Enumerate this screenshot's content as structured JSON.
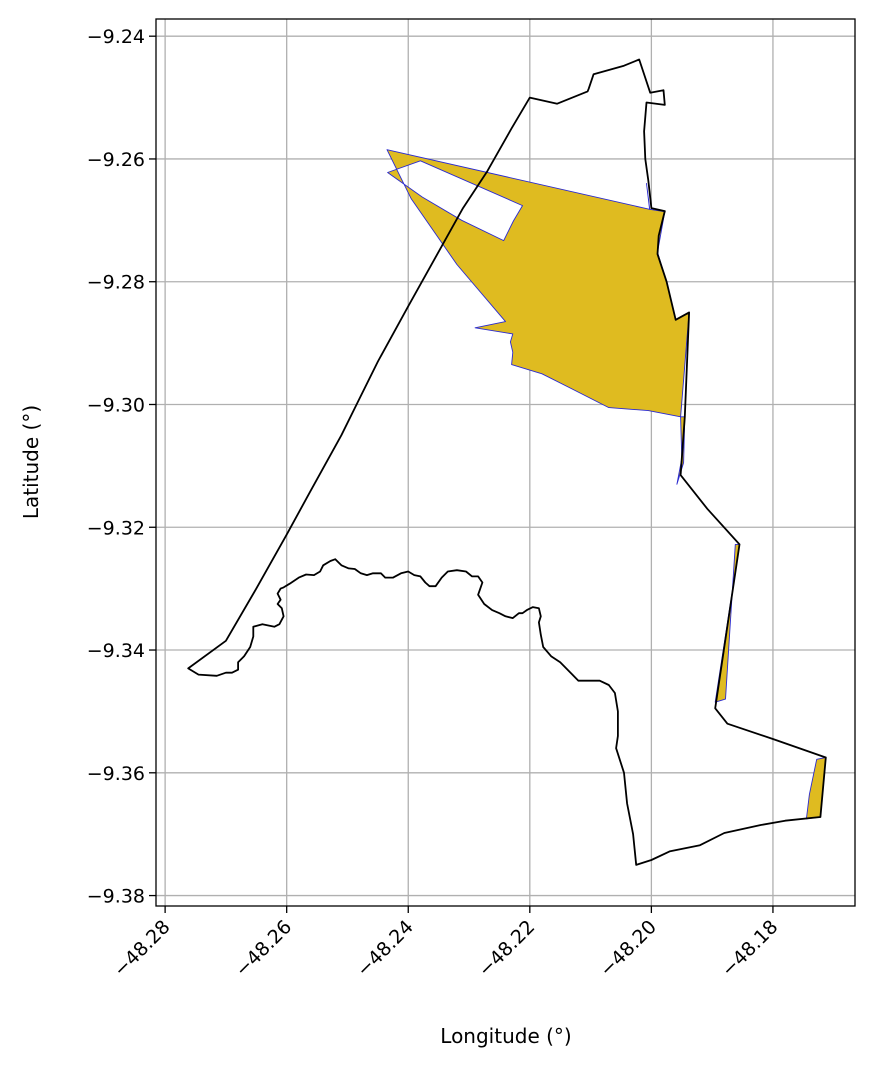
{
  "chart_data": {
    "type": "map",
    "xlabel": "Longitude (°)",
    "ylabel": "Latitude (°)",
    "xlim": [
      -48.2815,
      -48.1665
    ],
    "ylim": [
      -9.3817,
      -9.2372
    ],
    "xticks": [
      -48.28,
      -48.26,
      -48.24,
      -48.22,
      -48.2,
      -48.18
    ],
    "xtick_labels": [
      "−48.28",
      "−48.26",
      "−48.24",
      "−48.22",
      "−48.20",
      "−48.18"
    ],
    "yticks": [
      -9.24,
      -9.26,
      -9.28,
      -9.3,
      -9.32,
      -9.34,
      -9.36,
      -9.38
    ],
    "ytick_labels": [
      "−9.24",
      "−9.26",
      "−9.28",
      "−9.30",
      "−9.32",
      "−9.34",
      "−9.36",
      "−9.38"
    ],
    "grid": true,
    "colors": {
      "fill": "#dfbb20",
      "fill_edge": "#2a2ad0",
      "boundary": "#000000",
      "grid": "#b0b0b0"
    },
    "boundary_polygon": [
      [
        -48.2762,
        -9.343
      ],
      [
        -48.2745,
        -9.344
      ],
      [
        -48.2715,
        -9.3442
      ],
      [
        -48.27,
        -9.3437
      ],
      [
        -48.269,
        -9.3437
      ],
      [
        -48.268,
        -9.3432
      ],
      [
        -48.268,
        -9.342
      ],
      [
        -48.267,
        -9.341
      ],
      [
        -48.266,
        -9.3395
      ],
      [
        -48.2655,
        -9.3378
      ],
      [
        -48.2655,
        -9.3362
      ],
      [
        -48.264,
        -9.3358
      ],
      [
        -48.263,
        -9.336
      ],
      [
        -48.262,
        -9.3362
      ],
      [
        -48.2612,
        -9.3358
      ],
      [
        -48.2605,
        -9.3345
      ],
      [
        -48.2608,
        -9.3332
      ],
      [
        -48.2615,
        -9.3325
      ],
      [
        -48.261,
        -9.3318
      ],
      [
        -48.2615,
        -9.3308
      ],
      [
        -48.261,
        -9.33
      ],
      [
        -48.2605,
        -9.3298
      ],
      [
        -48.2595,
        -9.3292
      ],
      [
        -48.258,
        -9.3282
      ],
      [
        -48.2568,
        -9.3277
      ],
      [
        -48.2555,
        -9.3278
      ],
      [
        -48.2545,
        -9.3272
      ],
      [
        -48.254,
        -9.3262
      ],
      [
        -48.2528,
        -9.3255
      ],
      [
        -48.252,
        -9.3252
      ],
      [
        -48.251,
        -9.3262
      ],
      [
        -48.2498,
        -9.3267
      ],
      [
        -48.2488,
        -9.3268
      ],
      [
        -48.2478,
        -9.3275
      ],
      [
        -48.2468,
        -9.3278
      ],
      [
        -48.2458,
        -9.3275
      ],
      [
        -48.2445,
        -9.3275
      ],
      [
        -48.2438,
        -9.3282
      ],
      [
        -48.2425,
        -9.3282
      ],
      [
        -48.2412,
        -9.3275
      ],
      [
        -48.24,
        -9.3272
      ],
      [
        -48.239,
        -9.3278
      ],
      [
        -48.238,
        -9.328
      ],
      [
        -48.2372,
        -9.329
      ],
      [
        -48.2365,
        -9.3296
      ],
      [
        -48.2355,
        -9.3296
      ],
      [
        -48.2345,
        -9.3282
      ],
      [
        -48.2335,
        -9.3272
      ],
      [
        -48.232,
        -9.327
      ],
      [
        -48.2305,
        -9.3272
      ],
      [
        -48.2295,
        -9.328
      ],
      [
        -48.2285,
        -9.328
      ],
      [
        -48.2278,
        -9.329
      ],
      [
        -48.2285,
        -9.331
      ],
      [
        -48.2275,
        -9.3325
      ],
      [
        -48.2262,
        -9.3335
      ],
      [
        -48.225,
        -9.334
      ],
      [
        -48.224,
        -9.3345
      ],
      [
        -48.2228,
        -9.3348
      ],
      [
        -48.2218,
        -9.334
      ],
      [
        -48.2212,
        -9.334
      ],
      [
        -48.2205,
        -9.3335
      ],
      [
        -48.2195,
        -9.333
      ],
      [
        -48.2185,
        -9.3332
      ],
      [
        -48.2182,
        -9.3345
      ],
      [
        -48.2185,
        -9.3355
      ],
      [
        -48.2182,
        -9.3375
      ],
      [
        -48.2178,
        -9.3395
      ],
      [
        -48.2165,
        -9.341
      ],
      [
        -48.215,
        -9.342
      ],
      [
        -48.213,
        -9.344
      ],
      [
        -48.212,
        -9.345
      ],
      [
        -48.2098,
        -9.345
      ],
      [
        -48.2085,
        -9.345
      ],
      [
        -48.207,
        -9.3457
      ],
      [
        -48.206,
        -9.347
      ],
      [
        -48.2055,
        -9.35
      ],
      [
        -48.2055,
        -9.354
      ],
      [
        -48.2058,
        -9.356
      ],
      [
        -48.2045,
        -9.36
      ],
      [
        -48.204,
        -9.365
      ],
      [
        -48.203,
        -9.37
      ],
      [
        -48.2025,
        -9.375
      ],
      [
        -48.2,
        -9.3742
      ],
      [
        -48.197,
        -9.3728
      ],
      [
        -48.192,
        -9.3718
      ],
      [
        -48.188,
        -9.3698
      ],
      [
        -48.182,
        -9.3685
      ],
      [
        -48.178,
        -9.3678
      ],
      [
        -48.1722,
        -9.3672
      ],
      [
        -48.1713,
        -9.3575
      ],
      [
        -48.18,
        -9.3545
      ],
      [
        -48.1875,
        -9.352
      ],
      [
        -48.1895,
        -9.3495
      ],
      [
        -48.1855,
        -9.3228
      ],
      [
        -48.1908,
        -9.317
      ],
      [
        -48.1952,
        -9.3115
      ],
      [
        -48.195,
        -9.3088
      ],
      [
        -48.1945,
        -9.302
      ],
      [
        -48.1938,
        -9.285
      ],
      [
        -48.196,
        -9.2862
      ],
      [
        -48.1975,
        -9.28
      ],
      [
        -48.199,
        -9.2755
      ],
      [
        -48.1988,
        -9.2725
      ],
      [
        -48.1978,
        -9.2685
      ],
      [
        -48.2,
        -9.268
      ],
      [
        -48.2005,
        -9.2635
      ],
      [
        -48.201,
        -9.26
      ],
      [
        -48.2012,
        -9.2555
      ],
      [
        -48.2008,
        -9.2508
      ],
      [
        -48.1978,
        -9.2512
      ],
      [
        -48.198,
        -9.2488
      ],
      [
        -48.2002,
        -9.2492
      ],
      [
        -48.202,
        -9.2438
      ],
      [
        -48.2045,
        -9.2448
      ],
      [
        -48.2095,
        -9.2462
      ],
      [
        -48.2103,
        -9.2485
      ],
      [
        -48.2105,
        -9.249
      ],
      [
        -48.2155,
        -9.251
      ],
      [
        -48.22,
        -9.25
      ],
      [
        -48.223,
        -9.255
      ],
      [
        -48.227,
        -9.262
      ],
      [
        -48.231,
        -9.268
      ],
      [
        -48.24,
        -9.284
      ],
      [
        -48.245,
        -9.293
      ],
      [
        -48.248,
        -9.299
      ],
      [
        -48.251,
        -9.305
      ],
      [
        -48.2562,
        -9.3143
      ],
      [
        -48.26,
        -9.3212
      ],
      [
        -48.265,
        -9.33
      ],
      [
        -48.27,
        -9.3385
      ]
    ],
    "filled_polygons": [
      {
        "outer": [
          [
            -48.224,
            -9.2865
          ],
          [
            -48.232,
            -9.2772
          ],
          [
            -48.2395,
            -9.2665
          ],
          [
            -48.2435,
            -9.2585
          ],
          [
            -48.2003,
            -9.2682
          ],
          [
            -48.1978,
            -9.2686
          ],
          [
            -48.199,
            -9.2752
          ],
          [
            -48.1975,
            -9.28
          ],
          [
            -48.196,
            -9.2862
          ],
          [
            -48.1938,
            -9.285
          ],
          [
            -48.1952,
            -9.302
          ],
          [
            -48.2005,
            -9.301
          ],
          [
            -48.207,
            -9.3005
          ],
          [
            -48.213,
            -9.2975
          ],
          [
            -48.218,
            -9.295
          ],
          [
            -48.223,
            -9.2935
          ],
          [
            -48.2228,
            -9.2915
          ],
          [
            -48.2232,
            -9.2898
          ],
          [
            -48.2228,
            -9.2885
          ],
          [
            -48.229,
            -9.2875
          ]
        ],
        "hole": [
          [
            -48.2434,
            -9.2622
          ],
          [
            -48.2377,
            -9.2662
          ],
          [
            -48.2312,
            -9.27
          ],
          [
            -48.2243,
            -9.2733
          ],
          [
            -48.2227,
            -9.2701
          ],
          [
            -48.2212,
            -9.2676
          ],
          [
            -48.238,
            -9.2603
          ]
        ]
      },
      {
        "outer": [
          [
            -48.1958,
            -9.313
          ],
          [
            -48.1947,
            -9.3095
          ],
          [
            -48.1945,
            -9.302
          ],
          [
            -48.1952,
            -9.302
          ],
          [
            -48.195,
            -9.3088
          ]
        ]
      },
      {
        "outer": [
          [
            -48.1855,
            -9.3228
          ],
          [
            -48.1895,
            -9.3485
          ],
          [
            -48.1878,
            -9.348
          ],
          [
            -48.1862,
            -9.3228
          ]
        ]
      },
      {
        "outer": [
          [
            -48.1713,
            -9.3575
          ],
          [
            -48.1722,
            -9.3672
          ],
          [
            -48.1745,
            -9.3675
          ],
          [
            -48.174,
            -9.3635
          ],
          [
            -48.1728,
            -9.3578
          ]
        ]
      },
      {
        "outer": [
          [
            -48.2003,
            -9.2682
          ],
          [
            -48.2008,
            -9.264
          ],
          [
            -48.2003,
            -9.268
          ]
        ]
      }
    ]
  }
}
